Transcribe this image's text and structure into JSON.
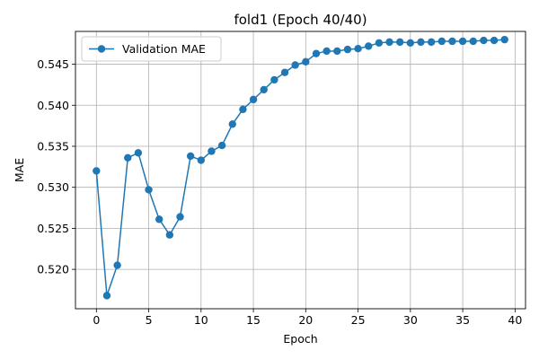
{
  "chart_data": {
    "type": "line",
    "title": "fold1 (Epoch 40/40)",
    "xlabel": "Epoch",
    "ylabel": "MAE",
    "xlim": [
      -2,
      41
    ],
    "ylim": [
      0.5152,
      0.549
    ],
    "xticks": [
      0,
      5,
      10,
      15,
      20,
      25,
      30,
      35,
      40
    ],
    "yticks": [
      0.52,
      0.525,
      0.53,
      0.535,
      0.54,
      0.545
    ],
    "grid": true,
    "legend_position": "top-left",
    "series": [
      {
        "name": "Validation MAE",
        "color": "#1f77b4",
        "marker": "circle",
        "x": [
          0,
          1,
          2,
          3,
          4,
          5,
          6,
          7,
          8,
          9,
          10,
          11,
          12,
          13,
          14,
          15,
          16,
          17,
          18,
          19,
          20,
          21,
          22,
          23,
          24,
          25,
          26,
          27,
          28,
          29,
          30,
          31,
          32,
          33,
          34,
          35,
          36,
          37,
          38,
          39
        ],
        "values": [
          0.532,
          0.5168,
          0.5205,
          0.5336,
          0.5342,
          0.5297,
          0.5261,
          0.5242,
          0.5264,
          0.5338,
          0.5333,
          0.5344,
          0.5351,
          0.5377,
          0.5395,
          0.5407,
          0.5419,
          0.5431,
          0.544,
          0.5449,
          0.5453,
          0.5463,
          0.5466,
          0.5466,
          0.5468,
          0.5469,
          0.5472,
          0.5476,
          0.5477,
          0.5477,
          0.5476,
          0.5477,
          0.5477,
          0.5478,
          0.5478,
          0.5478,
          0.5478,
          0.5479,
          0.5479,
          0.548
        ]
      }
    ]
  }
}
